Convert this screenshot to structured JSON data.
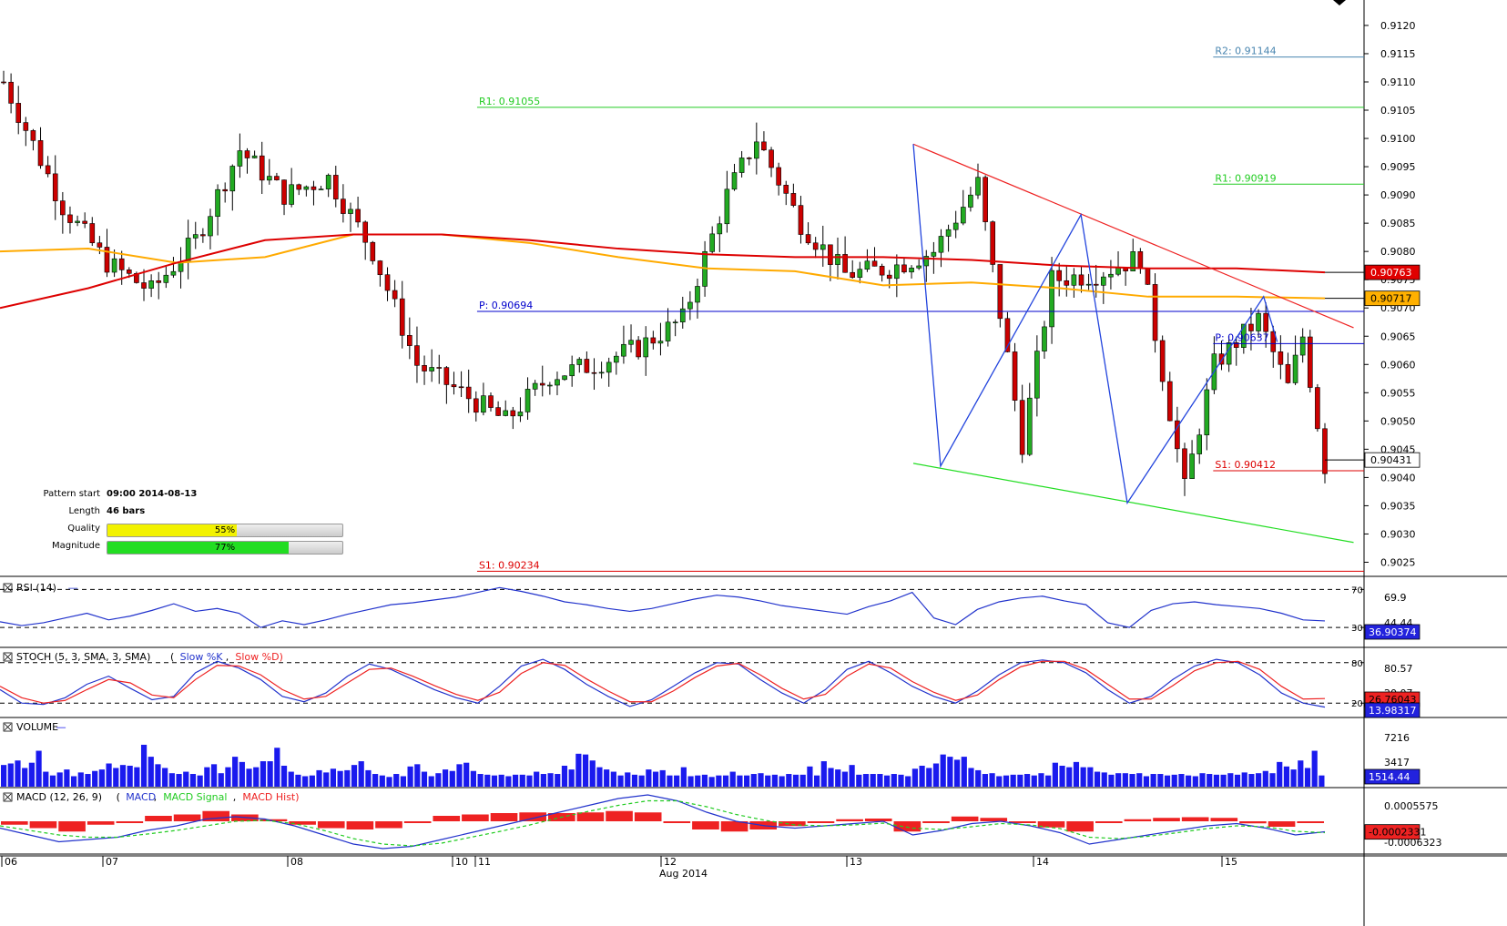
{
  "chart_data": {
    "type": "candlestick",
    "period": "Aug 2014",
    "date_labels": [
      "06",
      "07",
      "08",
      "10",
      "11",
      "12",
      "13",
      "14",
      "15"
    ],
    "month_label": "Aug 2014",
    "price_axis": {
      "range": [
        0.90225,
        0.91245
      ],
      "ticks": [
        "0.9120",
        "0.9115",
        "0.9110",
        "0.9105",
        "0.9100",
        "0.9095",
        "0.9090",
        "0.9085",
        "0.9080",
        "0.9075",
        "0.9070",
        "0.9065",
        "0.9060",
        "0.9055",
        "0.9050",
        "0.9045",
        "0.9040",
        "0.9035",
        "0.9030",
        "0.9025"
      ]
    },
    "price_markers": [
      {
        "label": "0.90763",
        "value": 0.90763,
        "color": "#e00000",
        "text_color": "#ffffff"
      },
      {
        "label": "0.90717",
        "value": 0.90717,
        "color": "#ffb000",
        "text_color": "#000000"
      },
      {
        "label": "0.90431",
        "value": 0.90431,
        "color": "#ffffff",
        "text_color": "#000000"
      }
    ],
    "pivot_levels": [
      {
        "label": "R2: 0.91144",
        "value": 0.91144,
        "color": "#4a86b0",
        "x_start": 0.89
      },
      {
        "label": "R1: 0.91055",
        "value": 0.91055,
        "color": "#22cc22",
        "x_start": 0.35
      },
      {
        "label": "R1: 0.90919",
        "value": 0.90919,
        "color": "#22cc22",
        "x_start": 0.89
      },
      {
        "label": "P: 0.90694",
        "value": 0.90694,
        "color": "#0000cc",
        "x_start": 0.35
      },
      {
        "label": "P: 0.90637",
        "value": 0.90637,
        "color": "#0000cc",
        "x_start": 0.89
      },
      {
        "label": "S1: 0.90412",
        "value": 0.90412,
        "color": "#dd0000",
        "x_start": 0.89
      },
      {
        "label": "S1: 0.90234",
        "value": 0.90234,
        "color": "#dd0000",
        "x_start": 0.35
      }
    ],
    "series": [
      {
        "name": "Price",
        "type": "candles",
        "up_color": "#22aa22",
        "down_color": "#cc0000",
        "values": [
          [
            0.909,
            0.909,
            0.909,
            0.909
          ]
        ]
      },
      {
        "name": "Moving average (orange)",
        "color": "#ffaa00",
        "values": [
          0.908,
          0.90805,
          0.9078,
          0.9079,
          0.9083,
          0.9083,
          0.90815,
          0.9079,
          0.9077,
          0.90765,
          0.9074,
          0.90745,
          0.90735,
          0.9072,
          0.9072,
          0.90717
        ]
      },
      {
        "name": "Moving average (red)",
        "color": "#dd0000",
        "values": [
          0.907,
          0.90735,
          0.9078,
          0.9082,
          0.9083,
          0.9083,
          0.9082,
          0.90805,
          0.90795,
          0.9079,
          0.9079,
          0.90785,
          0.90775,
          0.9077,
          0.9077,
          0.90763
        ]
      }
    ],
    "channel_lines": [
      {
        "name": "resistance",
        "color": "#ee2222",
        "points": [
          [
            0.67,
            0.9099
          ],
          [
            0.993,
            0.90665
          ]
        ]
      },
      {
        "name": "support",
        "color": "#22dd22",
        "points": [
          [
            0.67,
            0.90425
          ],
          [
            0.993,
            0.90285
          ]
        ]
      }
    ],
    "zigzag": {
      "color": "#2244dd",
      "points": [
        [
          0.67,
          0.9099
        ],
        [
          0.69,
          0.9042
        ],
        [
          0.793,
          0.90865
        ],
        [
          0.827,
          0.90355
        ],
        [
          0.927,
          0.9072
        ],
        [
          0.937,
          0.9064
        ]
      ]
    },
    "pattern_info": {
      "pattern_start_label": "Pattern start",
      "pattern_start": "09:00 2014-08-13",
      "length_label": "Length",
      "length": "46 bars",
      "quality_label": "Quality",
      "quality": "55%",
      "quality_fill": 0.55,
      "quality_color": "#f2f200",
      "magnitude_label": "Magnitude",
      "magnitude": "77%",
      "magnitude_fill": 0.77,
      "magnitude_color": "#22dd22"
    },
    "indicators": {
      "rsi": {
        "title": "RSI (14)",
        "color": "#2233cc",
        "level_labels": [
          "70",
          "30"
        ],
        "levels": [
          70,
          30
        ],
        "axis_labels": [
          "69.9",
          "44.44"
        ],
        "value_label": "36.90374",
        "value": 36.90374,
        "values": [
          36,
          32,
          35,
          40,
          45,
          38,
          42,
          48,
          55,
          47,
          50,
          45,
          30,
          37,
          33,
          38,
          44,
          49,
          54,
          56,
          59,
          62,
          67,
          72,
          68,
          63,
          57,
          54,
          50,
          47,
          50,
          55,
          60,
          64,
          62,
          58,
          53,
          50,
          47,
          44,
          52,
          58,
          67,
          40,
          33,
          49,
          57,
          61,
          63,
          58,
          54,
          35,
          30,
          48,
          55,
          57,
          54,
          52,
          50,
          45,
          38,
          36.9
        ]
      },
      "stoch": {
        "title": "STOCH (5, 3, SMA, 3, SMA)",
        "k_label": "Slow %K",
        "d_label": "Slow %D",
        "k_color": "#2233cc",
        "d_color": "#ee2222",
        "level_labels": [
          "80",
          "20"
        ],
        "levels": [
          80,
          20
        ],
        "axis_labels": [
          "80.57",
          "20.07"
        ],
        "value_labels": [
          "26.76043",
          "13.98317"
        ],
        "k_values": [
          40,
          20,
          18,
          28,
          48,
          60,
          42,
          25,
          30,
          65,
          82,
          72,
          55,
          30,
          22,
          35,
          60,
          78,
          70,
          55,
          40,
          28,
          20,
          45,
          75,
          85,
          70,
          48,
          30,
          15,
          25,
          45,
          65,
          80,
          78,
          55,
          35,
          20,
          40,
          70,
          82,
          65,
          45,
          30,
          20,
          38,
          62,
          80,
          84,
          80,
          65,
          40,
          20,
          30,
          55,
          75,
          85,
          80,
          62,
          35,
          20,
          14
        ],
        "d_values": [
          45,
          28,
          20,
          24,
          40,
          55,
          50,
          32,
          28,
          55,
          76,
          75,
          62,
          40,
          26,
          30,
          50,
          70,
          72,
          60,
          46,
          33,
          24,
          36,
          64,
          80,
          76,
          56,
          38,
          22,
          22,
          38,
          58,
          75,
          79,
          62,
          42,
          26,
          33,
          60,
          78,
          72,
          52,
          36,
          24,
          32,
          55,
          74,
          82,
          82,
          70,
          48,
          26,
          26,
          46,
          68,
          80,
          82,
          70,
          45,
          26,
          26.8
        ]
      },
      "volume": {
        "title": "VOLUME",
        "color": "#1a1aee",
        "axis_labels": [
          "7216",
          "3417"
        ],
        "value_label": "1514.44",
        "value": 1514.44,
        "values": [
          2900,
          3100,
          3500,
          2500,
          3200,
          4800,
          2000,
          1500,
          1900,
          2300,
          1400,
          1900,
          1700,
          2100,
          2300,
          3100,
          2500,
          2900,
          2800,
          2600,
          5600,
          4000,
          3000,
          2500,
          1800,
          1700,
          2000,
          1700,
          1500,
          2600,
          3000,
          1800,
          2600,
          4000,
          3300,
          2400,
          2600,
          3400,
          3400,
          5200,
          2800,
          2000,
          1600,
          1400,
          1500,
          2200,
          1900,
          2400,
          2100,
          2200,
          2900,
          3400,
          2200,
          1700,
          1500,
          1300,
          1700,
          1400,
          2700,
          3000,
          2000,
          1400,
          1800,
          2300,
          2100,
          3000,
          3200,
          2100,
          1700,
          1600,
          1500,
          1600,
          1400,
          1600,
          1600,
          1500,
          2000,
          1700,
          1800,
          1700,
          2800,
          2300,
          4400,
          4300,
          3500,
          2600,
          2300,
          2000,
          1500,
          1900,
          1600,
          1500,
          2300,
          2000,
          2200,
          1500,
          1500,
          2600,
          1400,
          1500,
          1600,
          1300,
          1500,
          1500,
          2000,
          1500,
          1500,
          1700,
          1800,
          1500,
          1600,
          1400,
          1700,
          1600,
          1600,
          2700,
          1500,
          3400,
          2500,
          2300,
          2000,
          2900,
          1600,
          1700,
          1700,
          1700,
          1500,
          1700,
          1600,
          1400,
          2400,
          2800,
          2500,
          3100,
          4300,
          4000,
          3600,
          4000,
          2500,
          2200,
          1700,
          1800,
          1400,
          1500,
          1600,
          1600,
          1700,
          1500,
          1800,
          1500,
          3200,
          2800,
          2600,
          3300,
          2600,
          2600,
          2000,
          1900,
          1600,
          1800,
          1800,
          1700,
          1800,
          1400,
          1700,
          1700,
          1500,
          1600,
          1700,
          1500,
          1400,
          1800,
          1700,
          1600,
          1600,
          1800,
          1600,
          1900,
          1700,
          1800,
          2100,
          1800,
          3300,
          2700,
          2300,
          3500,
          2500,
          4800,
          1500
        ]
      },
      "macd": {
        "title": "MACD (12, 26, 9)",
        "labels": [
          "MACD",
          "MACD Signal",
          "MACD Hist"
        ],
        "macd_color": "#2233cc",
        "signal_color": "#22cc22",
        "hist_color": "#ee2222",
        "axis_labels": [
          "0.0005575",
          "-0.0006323"
        ],
        "value_label": "-0.0002331",
        "value": -0.0002331,
        "macd_values": [
          -0.00015,
          -0.0003,
          -0.00045,
          -0.0004,
          -0.00035,
          -0.0002,
          -0.0001,
          5e-05,
          0.0001,
          5e-05,
          -0.0001,
          -0.0003,
          -0.0005,
          -0.0006,
          -0.00055,
          -0.0004,
          -0.00025,
          -0.0001,
          5e-05,
          0.0002,
          0.00035,
          0.0005,
          0.00058,
          0.00045,
          0.0002,
          0.0,
          -0.0001,
          -0.00015,
          -0.0001,
          -5e-05,
          0.0,
          -0.0003,
          -0.0002,
          -5e-05,
          0.0,
          -0.0001,
          -0.00025,
          -0.0005,
          -0.0004,
          -0.0003,
          -0.0002,
          -0.0001,
          -5e-05,
          -0.00015,
          -0.0003,
          -0.00023
        ],
        "signal_values": [
          -0.0001,
          -0.0002,
          -0.0003,
          -0.00035,
          -0.00035,
          -0.00028,
          -0.0002,
          -0.0001,
          0.0,
          2e-05,
          -5e-05,
          -0.0002,
          -0.00038,
          -0.0005,
          -0.00054,
          -0.00048,
          -0.00035,
          -0.00022,
          -8e-05,
          8e-05,
          0.00022,
          0.00035,
          0.00045,
          0.00045,
          0.00032,
          0.00015,
          2e-05,
          -8e-05,
          -0.0001,
          -8e-05,
          -4e-05,
          -0.00015,
          -0.00018,
          -0.00012,
          -5e-05,
          -8e-05,
          -0.00016,
          -0.00035,
          -0.00038,
          -0.00033,
          -0.00025,
          -0.00016,
          -0.0001,
          -0.00012,
          -0.00022,
          -0.00025
        ],
        "hist_values": [
          -5e-05,
          -0.0001,
          -0.00015,
          -5e-05,
          0.0,
          8e-05,
          0.0001,
          0.00015,
          0.0001,
          3e-05,
          -5e-05,
          -0.0001,
          -0.00012,
          -0.0001,
          -1e-05,
          8e-05,
          0.0001,
          0.00012,
          0.00013,
          0.00012,
          0.00013,
          0.00015,
          0.00013,
          0.0,
          -0.00012,
          -0.00015,
          -0.00012,
          -7e-05,
          0.0,
          3e-05,
          4e-05,
          -0.00015,
          -2e-05,
          7e-05,
          5e-05,
          -2e-05,
          -9e-05,
          -0.00015,
          -2e-05,
          3e-05,
          5e-05,
          6e-05,
          5e-05,
          -3e-05,
          -8e-05,
          -2e-05
        ]
      }
    }
  }
}
